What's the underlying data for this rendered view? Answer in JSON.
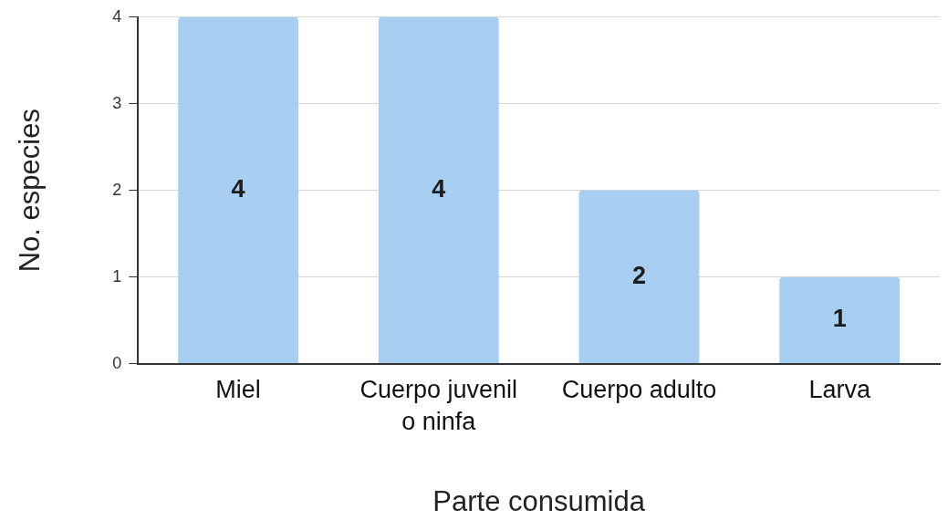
{
  "chart_data": {
    "type": "bar",
    "xlabel": "Parte consumida",
    "ylabel": "No. especies",
    "categories": [
      "Miel",
      "Cuerpo juvenil o ninfa",
      "Cuerpo adulto",
      "Larva"
    ],
    "values": [
      4,
      4,
      2,
      1
    ],
    "color": "#a8cef1",
    "ylim": [
      0,
      4
    ],
    "yticks": [
      0,
      1,
      2,
      3,
      4
    ],
    "grid": "y",
    "data_labels": true
  }
}
